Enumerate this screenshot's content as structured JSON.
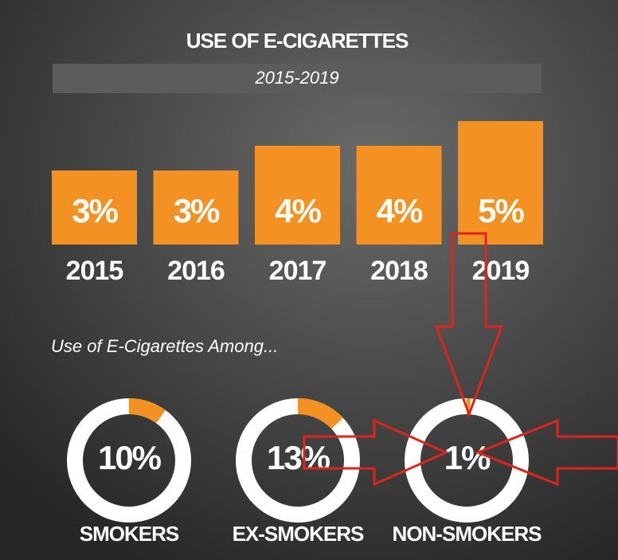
{
  "chart_data": [
    {
      "type": "bar",
      "title": "USE OF E-CIGARETTES",
      "subtitle": "2015-2019",
      "categories": [
        "2015",
        "2016",
        "2017",
        "2018",
        "2019"
      ],
      "values": [
        3,
        3,
        4,
        4,
        5
      ],
      "value_labels": [
        "3%",
        "3%",
        "4%",
        "4%",
        "5%"
      ],
      "color": "#f39223"
    },
    {
      "type": "donut",
      "title": "Use of E-Cigarettes Among...",
      "categories": [
        "SMOKERS",
        "EX-SMOKERS",
        "NON-SMOKERS"
      ],
      "values": [
        10,
        13,
        1
      ],
      "value_labels": [
        "10%",
        "13%",
        "1%"
      ],
      "color": "#f39223",
      "track_color": "#ffffff"
    }
  ]
}
